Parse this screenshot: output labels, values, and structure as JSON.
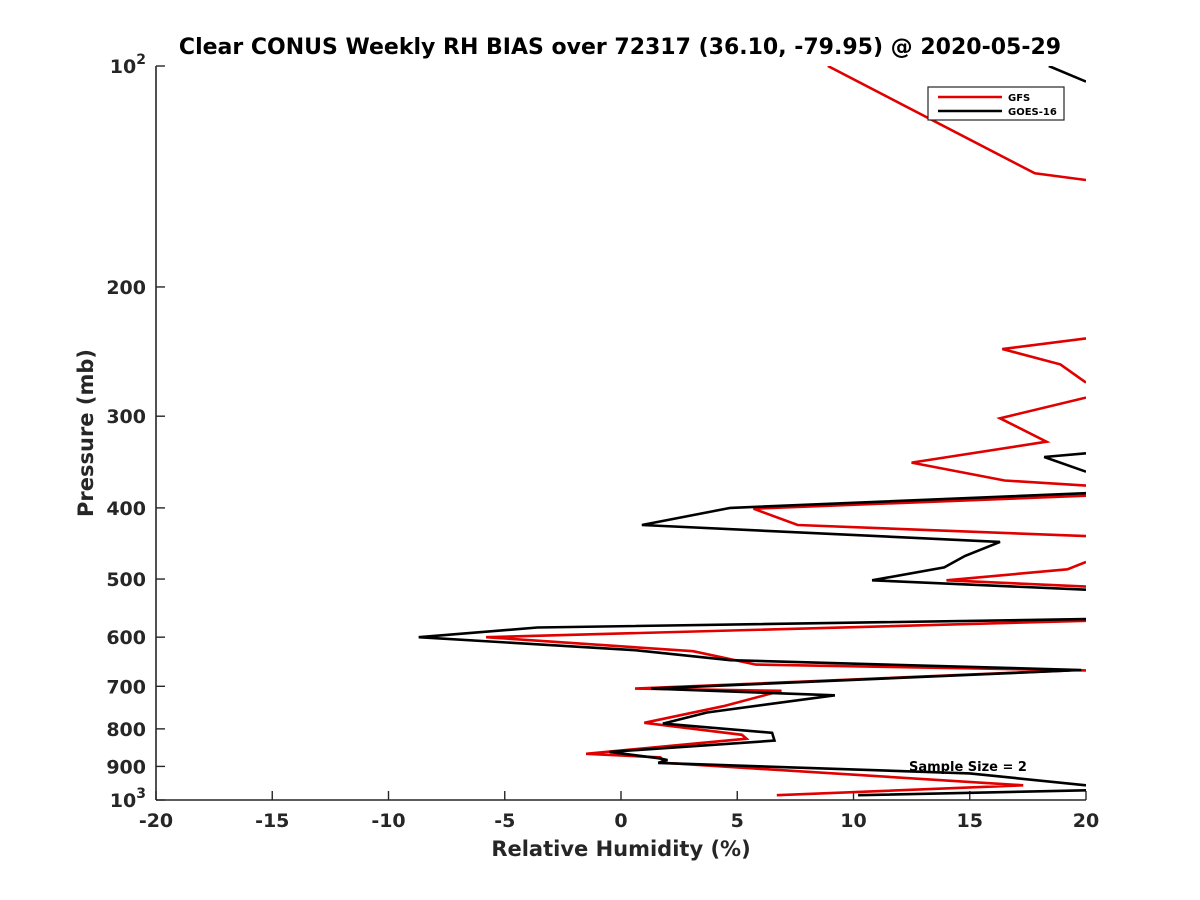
{
  "chart_data": {
    "type": "line",
    "title": "Clear CONUS Weekly RH BIAS over 72317 (36.10, -79.95) @ 2020-05-29",
    "xlabel": "Relative Humidity (%)",
    "ylabel": "Pressure (mb)",
    "xlim": [
      -20,
      20
    ],
    "ylim": [
      100,
      1000
    ],
    "y_scale": "log",
    "y_reversed": true,
    "x_ticks": [
      "-20",
      "-15",
      "-10",
      "-5",
      "0",
      "5",
      "10",
      "15",
      "20"
    ],
    "y_ticks": [
      {
        "value": 100,
        "base": "10",
        "exp": "2"
      },
      {
        "value": 200,
        "base": "200",
        "exp": ""
      },
      {
        "value": 300,
        "base": "300",
        "exp": ""
      },
      {
        "value": 400,
        "base": "400",
        "exp": ""
      },
      {
        "value": 500,
        "base": "500",
        "exp": ""
      },
      {
        "value": 600,
        "base": "600",
        "exp": ""
      },
      {
        "value": 700,
        "base": "700",
        "exp": ""
      },
      {
        "value": 800,
        "base": "800",
        "exp": ""
      },
      {
        "value": 900,
        "base": "900",
        "exp": ""
      },
      {
        "value": 1000,
        "base": "10",
        "exp": "3"
      }
    ],
    "grid": false,
    "legend_position": "top-right",
    "annotation": "Sample Size = 2",
    "series": [
      {
        "name": "GFS",
        "color": "#e00000",
        "points": [
          [
            8.9,
            100
          ],
          [
            17.8,
            140
          ],
          [
            20.0,
            143
          ],
          null,
          [
            20.0,
            235
          ],
          [
            16.4,
            243
          ],
          [
            18.9,
            255
          ],
          [
            20.0,
            270
          ],
          null,
          [
            20.0,
            283
          ],
          [
            16.3,
            302
          ],
          [
            18.3,
            325
          ],
          [
            12.5,
            347
          ],
          [
            16.5,
            367
          ],
          [
            20.0,
            373
          ],
          null,
          [
            20.0,
            385
          ],
          [
            5.7,
            401
          ],
          [
            7.6,
            422
          ],
          [
            20.0,
            437
          ],
          null,
          [
            20.0,
            474
          ],
          [
            19.2,
            485
          ],
          [
            14.0,
            502
          ],
          [
            20.0,
            512
          ],
          null,
          [
            20.0,
            570
          ],
          [
            -5.8,
            600
          ],
          [
            3.1,
            627
          ],
          [
            5.8,
            654
          ],
          [
            20.0,
            666
          ],
          null,
          [
            19.3,
            666
          ],
          [
            0.6,
            705
          ],
          [
            6.9,
            710
          ],
          [
            4.4,
            745
          ],
          [
            1.0,
            785
          ],
          [
            5.2,
            815
          ],
          [
            5.4,
            825
          ],
          [
            -1.5,
            865
          ],
          [
            1.7,
            875
          ],
          [
            1.9,
            890
          ],
          [
            17.3,
            955
          ],
          [
            6.7,
            985
          ]
        ]
      },
      {
        "name": "GOES-16",
        "color": "#000000",
        "points": [
          [
            18.4,
            100
          ],
          [
            20.0,
            105
          ],
          null,
          [
            20.0,
            337
          ],
          [
            18.2,
            341
          ],
          [
            20.0,
            357
          ],
          null,
          [
            20.0,
            382
          ],
          [
            4.7,
            400
          ],
          [
            0.9,
            422
          ],
          [
            16.3,
            445
          ],
          [
            14.8,
            465
          ],
          [
            13.9,
            482
          ],
          [
            10.8,
            502
          ],
          [
            20.0,
            517
          ],
          null,
          [
            20.0,
            567
          ],
          [
            -3.6,
            582
          ],
          [
            -8.7,
            600
          ],
          [
            0.6,
            625
          ],
          [
            4.7,
            645
          ],
          [
            19.8,
            665
          ],
          [
            1.3,
            705
          ],
          [
            9.2,
            720
          ],
          [
            3.7,
            760
          ],
          [
            1.8,
            787
          ],
          [
            6.5,
            810
          ],
          [
            6.6,
            830
          ],
          [
            -0.5,
            860
          ],
          [
            1.6,
            877
          ],
          [
            2.0,
            882
          ],
          [
            1.6,
            890
          ],
          [
            15.0,
            920
          ],
          [
            20.0,
            955
          ],
          null,
          [
            20.0,
            970
          ],
          [
            10.2,
            985
          ]
        ]
      }
    ]
  }
}
